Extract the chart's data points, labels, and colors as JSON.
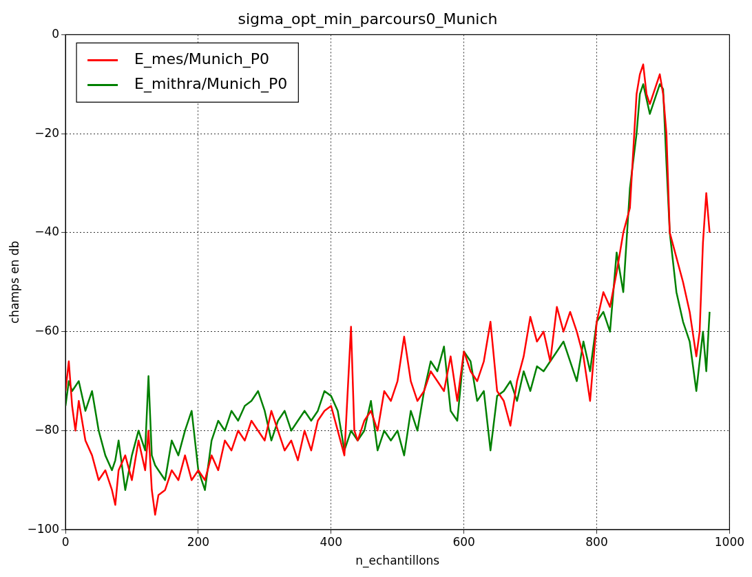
{
  "chart_data": {
    "type": "line",
    "title": "sigma_opt_min_parcours0_Munich",
    "xlabel": "n_echantillons",
    "ylabel": "champs en db",
    "xlim": [
      0,
      1000
    ],
    "xticks": [
      0,
      200,
      400,
      600,
      800,
      1000
    ],
    "ylim": [
      -100,
      0
    ],
    "yticks": [
      -100,
      -80,
      -60,
      -40,
      -20,
      0
    ],
    "grid": true,
    "legend": "top left",
    "line_style": "solid",
    "marker": "none",
    "x": [
      0,
      5,
      10,
      15,
      20,
      30,
      40,
      50,
      60,
      70,
      75,
      80,
      90,
      100,
      110,
      120,
      125,
      130,
      135,
      140,
      150,
      160,
      170,
      180,
      190,
      200,
      210,
      220,
      230,
      240,
      250,
      260,
      270,
      280,
      290,
      300,
      310,
      320,
      330,
      340,
      350,
      360,
      370,
      380,
      390,
      400,
      410,
      420,
      430,
      435,
      440,
      450,
      460,
      470,
      480,
      490,
      500,
      510,
      520,
      530,
      540,
      550,
      560,
      570,
      580,
      590,
      600,
      610,
      620,
      630,
      640,
      650,
      660,
      670,
      680,
      690,
      700,
      710,
      720,
      730,
      740,
      750,
      760,
      770,
      780,
      790,
      800,
      810,
      820,
      830,
      840,
      850,
      860,
      865,
      870,
      875,
      880,
      890,
      895,
      900,
      905,
      910,
      920,
      930,
      940,
      950,
      955,
      960,
      965,
      970
    ],
    "series": [
      {
        "name": "E_mes/Munich_P0",
        "color": "#ff0000",
        "values": [
          -72,
          -66,
          -75,
          -80,
          -74,
          -82,
          -85,
          -90,
          -88,
          -92,
          -95,
          -88,
          -85,
          -90,
          -82,
          -88,
          -80,
          -92,
          -97,
          -93,
          -92,
          -88,
          -90,
          -85,
          -90,
          -88,
          -90,
          -85,
          -88,
          -82,
          -84,
          -80,
          -82,
          -78,
          -80,
          -82,
          -76,
          -80,
          -84,
          -82,
          -86,
          -80,
          -84,
          -78,
          -76,
          -75,
          -80,
          -85,
          -59,
          -80,
          -82,
          -78,
          -76,
          -80,
          -72,
          -74,
          -70,
          -61,
          -70,
          -74,
          -72,
          -68,
          -70,
          -72,
          -65,
          -74,
          -64,
          -68,
          -70,
          -66,
          -58,
          -72,
          -74,
          -79,
          -70,
          -65,
          -57,
          -62,
          -60,
          -66,
          -55,
          -60,
          -56,
          -60,
          -65,
          -74,
          -58,
          -52,
          -55,
          -48,
          -40,
          -35,
          -12,
          -8,
          -6,
          -12,
          -14,
          -10,
          -8,
          -12,
          -20,
          -40,
          -45,
          -50,
          -56,
          -65,
          -60,
          -42,
          -32,
          -40
        ]
      },
      {
        "name": "E_mithra/Munich_P0",
        "color": "#008000",
        "values": [
          -75,
          -70,
          -72,
          -71,
          -70,
          -76,
          -72,
          -80,
          -85,
          -88,
          -86,
          -82,
          -92,
          -85,
          -80,
          -84,
          -69,
          -85,
          -87,
          -88,
          -90,
          -82,
          -85,
          -80,
          -76,
          -88,
          -92,
          -82,
          -78,
          -80,
          -76,
          -78,
          -75,
          -74,
          -72,
          -76,
          -82,
          -78,
          -76,
          -80,
          -78,
          -76,
          -78,
          -76,
          -72,
          -73,
          -76,
          -84,
          -80,
          -81,
          -82,
          -80,
          -74,
          -84,
          -80,
          -82,
          -80,
          -85,
          -76,
          -80,
          -72,
          -66,
          -68,
          -63,
          -76,
          -78,
          -64,
          -66,
          -74,
          -72,
          -84,
          -73,
          -72,
          -70,
          -74,
          -68,
          -72,
          -67,
          -68,
          -66,
          -64,
          -62,
          -66,
          -70,
          -62,
          -68,
          -58,
          -56,
          -60,
          -44,
          -52,
          -31,
          -20,
          -12,
          -10,
          -13,
          -16,
          -12,
          -10,
          -11,
          -26,
          -40,
          -52,
          -58,
          -62,
          -72,
          -66,
          -60,
          -68,
          -56
        ]
      }
    ]
  }
}
